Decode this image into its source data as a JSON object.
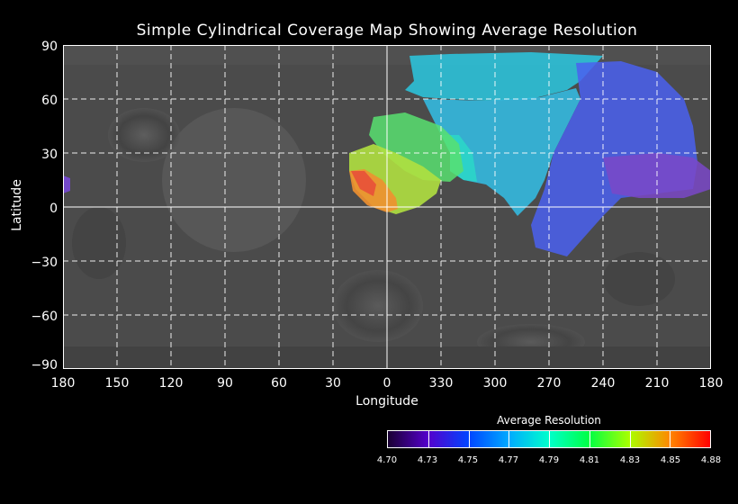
{
  "title": "Simple Cylindrical Coverage Map Showing Average Resolution",
  "xlabel": "Longitude",
  "ylabel": "Latitude",
  "y_ticks": [
    "90",
    "60",
    "30",
    "0",
    "−30",
    "−60",
    "−90"
  ],
  "x_ticks": [
    "180",
    "150",
    "120",
    "90",
    "60",
    "30",
    "0",
    "330",
    "300",
    "270",
    "240",
    "210",
    "180"
  ],
  "colorbar": {
    "title": "Average Resolution",
    "labels": [
      "4.70",
      "4.73",
      "4.75",
      "4.77",
      "4.79",
      "4.81",
      "4.83",
      "4.85",
      "4.88"
    ],
    "colors": [
      "#1a0033",
      "#5500cc",
      "#0044ff",
      "#00aaff",
      "#00ffcc",
      "#00ff44",
      "#aaff00",
      "#ff8800",
      "#ff0000"
    ]
  },
  "map": {
    "projection": "simple cylindrical",
    "grid": true,
    "background_color": "#4a4a4a",
    "grid_color": "#ffffff"
  }
}
